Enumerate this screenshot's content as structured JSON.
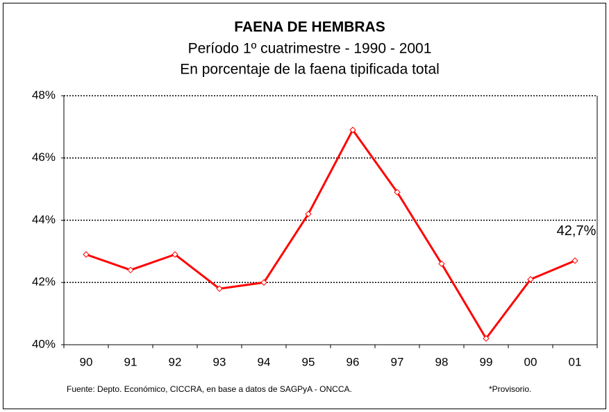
{
  "chart_data": {
    "type": "line",
    "title": "FAENA DE HEMBRAS",
    "subtitle": "Período 1º cuatrimestre - 1990 - 2001",
    "subtitle2": "En porcentaje de la faena tipificada total",
    "categories": [
      "90",
      "91",
      "92",
      "93",
      "94",
      "95",
      "96",
      "97",
      "98",
      "99",
      "00",
      "01"
    ],
    "series": [
      {
        "name": "Faena de hembras",
        "color": "#ff0000",
        "values": [
          42.9,
          42.4,
          42.9,
          41.8,
          42.0,
          44.2,
          46.9,
          44.9,
          42.6,
          40.2,
          42.1,
          42.7
        ],
        "value_labels": [
          null,
          null,
          null,
          null,
          null,
          null,
          null,
          null,
          null,
          null,
          null,
          "42,7%"
        ]
      }
    ],
    "ylim": [
      40,
      48
    ],
    "yticks": [
      {
        "value": 40,
        "label": "40%"
      },
      {
        "value": 42,
        "label": "42%"
      },
      {
        "value": 44,
        "label": "44%"
      },
      {
        "value": 46,
        "label": "46%"
      },
      {
        "value": 48,
        "label": "48%"
      }
    ],
    "grid": true,
    "source": "Fuente: Depto. Económico, CICCRA, en base a datos de SAGPyA - ONCCA.",
    "note": "*Provisorio."
  }
}
